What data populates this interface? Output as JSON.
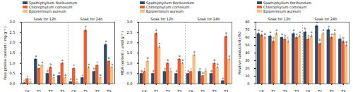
{
  "chart_data": [
    {
      "type": "bar",
      "y_label": "Free proline content ( mg g⁻¹ )",
      "categories": [
        "CK",
        "T1",
        "T2",
        "T3",
        "CK",
        "T1",
        "T2",
        "T3"
      ],
      "group_labels": [
        "Soak for 12h",
        "Soak for 24h"
      ],
      "ylim": [
        0,
        3
      ],
      "yticks": [
        {
          "value": 0,
          "label": "0.0"
        },
        0.5,
        {
          "value": 1,
          "label": "1.0"
        },
        1.5,
        {
          "value": 2,
          "label": "2.0"
        },
        2.5,
        {
          "value": 3,
          "label": "3.0"
        }
      ],
      "series": [
        {
          "name": "Spathiphyllum floribundum",
          "color": "#2f4b66",
          "values": [
            0.05,
            1.2,
            0.5,
            0.4,
            0.1,
            0.3,
            0.6,
            1.9
          ],
          "errors": [
            0.02,
            0.06,
            0.04,
            0.03,
            0.02,
            0.03,
            0.04,
            0.08
          ],
          "letters": [
            "c",
            "a",
            "b",
            "b",
            "d",
            "c",
            "b",
            "a"
          ]
        },
        {
          "name": "Chlorophytum comosum",
          "color": "#e2623b",
          "values": [
            0.25,
            0.75,
            0.8,
            1.0,
            0.75,
            2.6,
            0.9,
            1.1
          ],
          "errors": [
            0.03,
            0.05,
            0.05,
            0.06,
            0.05,
            0.08,
            0.05,
            0.06
          ],
          "letters": [
            "c",
            "b",
            "b",
            "a",
            "c",
            "a",
            "c",
            "b"
          ]
        },
        {
          "name": "Epipremnum aureum",
          "color": "#f4bf86",
          "values": [
            0.1,
            0.9,
            0.3,
            0.3,
            0.1,
            0.8,
            0.3,
            0.8
          ],
          "errors": [
            0.02,
            0.05,
            0.03,
            0.03,
            0.02,
            0.05,
            0.03,
            0.05
          ],
          "letters": [
            "c",
            "a",
            "b",
            "b",
            "c",
            "a",
            "b",
            "a"
          ]
        }
      ]
    },
    {
      "type": "bar",
      "y_label": "MDA content ( μmol g⁻¹ )",
      "categories": [
        "CK",
        "T1",
        "T2",
        "T3",
        "CK",
        "T1",
        "T2",
        "T3"
      ],
      "group_labels": [
        "Soak for 12h",
        "Soak for 24h"
      ],
      "ylim": [
        0,
        3
      ],
      "yticks": [
        {
          "value": 0,
          "label": "0.0"
        },
        0.5,
        {
          "value": 1,
          "label": "1.0"
        },
        1.5,
        {
          "value": 2,
          "label": "2.0"
        },
        2.5,
        {
          "value": 3,
          "label": "3.0"
        }
      ],
      "series": [
        {
          "name": "Spathiphyllum floribundum",
          "color": "#2f4b66",
          "values": [
            0.5,
            0.5,
            0.6,
            0.5,
            0.5,
            0.6,
            0.5,
            0.15
          ],
          "errors": [
            0.03,
            0.04,
            0.04,
            0.03,
            0.03,
            0.04,
            0.03,
            0.02
          ],
          "letters": [
            "a",
            "a",
            "a",
            "a",
            "a",
            "a",
            "a",
            "b"
          ]
        },
        {
          "name": "Chlorophytum comosum",
          "color": "#e2623b",
          "values": [
            0.6,
            2.45,
            1.0,
            1.2,
            0.6,
            0.4,
            1.0,
            2.3
          ],
          "errors": [
            0.04,
            0.08,
            0.05,
            0.06,
            0.04,
            0.03,
            0.05,
            0.08
          ],
          "letters": [
            "c",
            "a",
            "b",
            "b",
            "c",
            "d",
            "b",
            "a"
          ]
        },
        {
          "name": "Epipremnum aureum",
          "color": "#f4bf86",
          "values": [
            1.1,
            1.8,
            0.6,
            1.0,
            1.4,
            0.6,
            0.8,
            1.2
          ],
          "errors": [
            0.05,
            0.07,
            0.04,
            0.05,
            0.06,
            0.04,
            0.05,
            0.06
          ],
          "letters": [
            "b",
            "a",
            "c",
            "b",
            "a",
            "c",
            "b",
            "a"
          ]
        }
      ]
    },
    {
      "type": "bar",
      "y_label": "Relative conductivity(%)",
      "categories": [
        "CK",
        "T1",
        "T2",
        "T3",
        "CK",
        "T1",
        "T2",
        "T3"
      ],
      "group_labels": [
        "Soak for 12h",
        "Soak for 24h"
      ],
      "ylim": [
        0,
        80
      ],
      "yticks": [
        0,
        10,
        20,
        30,
        40,
        50,
        60,
        70,
        80
      ],
      "series": [
        {
          "name": "Spathiphyllum floribundum",
          "color": "#2f4b66",
          "values": [
            65,
            62,
            60,
            65,
            67,
            75,
            70,
            58
          ],
          "errors": [
            2,
            2,
            2,
            2,
            2,
            2,
            2,
            2
          ],
          "letters": [
            "a",
            "a",
            "a",
            "a",
            "b",
            "a",
            "a",
            "c"
          ]
        },
        {
          "name": "Chlorophytum comosum",
          "color": "#e2623b",
          "values": [
            63,
            55,
            58,
            60,
            58,
            52,
            60,
            55
          ],
          "errors": [
            2,
            2,
            2,
            2,
            2,
            2,
            2,
            2
          ],
          "letters": [
            "a",
            "b",
            "b",
            "a",
            "a",
            "b",
            "a",
            "b"
          ]
        },
        {
          "name": "Epipremnum aureum",
          "color": "#f4bf86",
          "values": [
            60,
            65,
            55,
            62,
            62,
            65,
            65,
            50
          ],
          "errors": [
            2,
            2,
            2,
            2,
            2,
            2,
            2,
            2
          ],
          "letters": [
            "b",
            "a",
            "c",
            "a",
            "a",
            "a",
            "a",
            "b"
          ]
        }
      ]
    }
  ]
}
